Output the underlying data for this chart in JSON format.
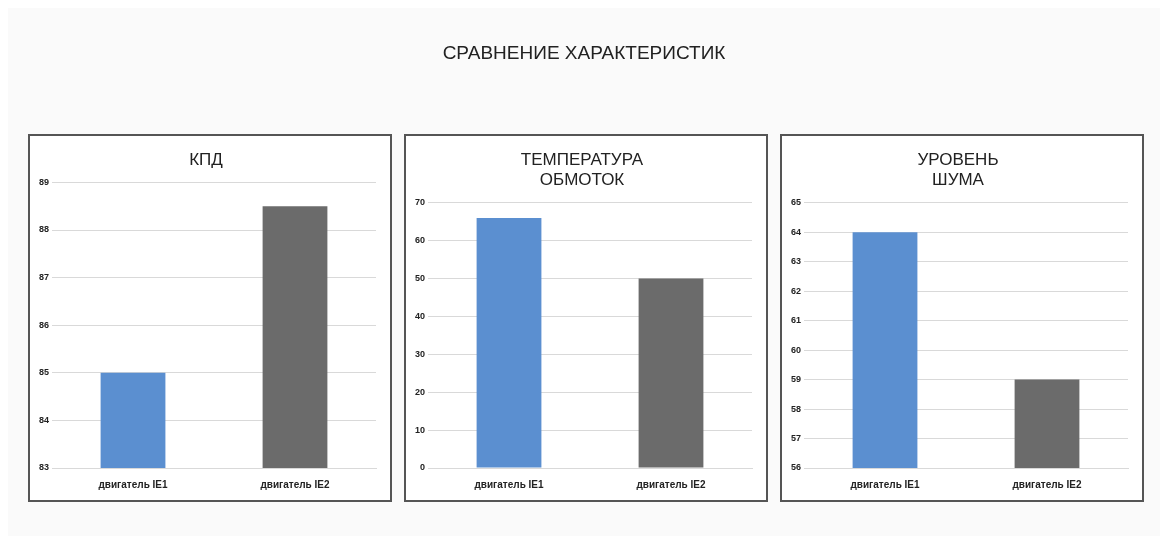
{
  "chart_data": [
    {
      "type": "other",
      "title": "СРАВНЕНИЕ ХАРАКТЕРИСТИК"
    },
    {
      "type": "bar",
      "title": "КПД",
      "categories": [
        "двигатель IE1",
        "двигатель IE2"
      ],
      "values": [
        85,
        88.5
      ],
      "colors": [
        "#5b8fd0",
        "#6b6b6b"
      ],
      "ylim": [
        83,
        89
      ],
      "yticks": [
        83,
        84,
        85,
        86,
        87,
        88,
        89
      ],
      "grid": "y"
    },
    {
      "type": "bar",
      "title": "ТЕМПЕРАТУРА\nОБМОТОК",
      "categories": [
        "двигатель IE1",
        "двигатель IE2"
      ],
      "values": [
        66,
        50
      ],
      "colors": [
        "#5b8fd0",
        "#6b6b6b"
      ],
      "ylim": [
        0,
        70
      ],
      "yticks": [
        0,
        10,
        20,
        30,
        40,
        50,
        60,
        70
      ],
      "grid": "y"
    },
    {
      "type": "bar",
      "title": "УРОВЕНЬ\nШУМА",
      "categories": [
        "двигатель IE1",
        "двигатель IE2"
      ],
      "values": [
        64,
        59
      ],
      "colors": [
        "#5b8fd0",
        "#6b6b6b"
      ],
      "ylim": [
        56,
        65
      ],
      "yticks": [
        56,
        57,
        58,
        59,
        60,
        61,
        62,
        63,
        64,
        65
      ],
      "grid": "y"
    }
  ]
}
